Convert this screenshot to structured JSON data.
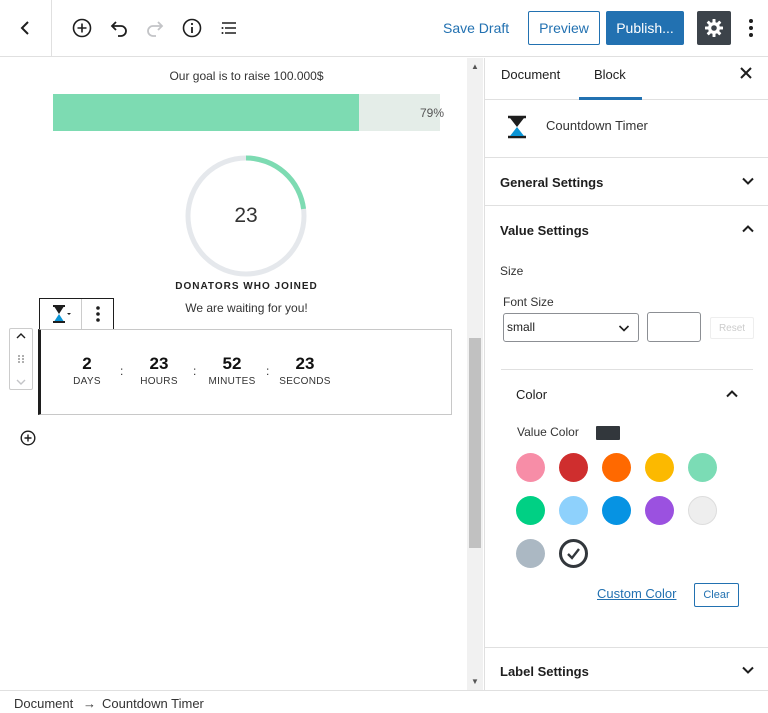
{
  "toolbar": {
    "save_draft": "Save Draft",
    "preview": "Preview",
    "publish": "Publish..."
  },
  "canvas": {
    "goal_text": "Our goal is to raise 100.000$",
    "progress_percent": 79,
    "progress_label": "79%",
    "circle_value": "23",
    "circle_fraction": 0.23,
    "donators_label": "DONATORS WHO JOINED",
    "waiting_text": "We are waiting for you!",
    "timer": [
      {
        "value": "2",
        "label": "DAYS"
      },
      {
        "value": "23",
        "label": "HOURS"
      },
      {
        "value": "52",
        "label": "MINUTES"
      },
      {
        "value": "23",
        "label": "SECONDS"
      }
    ],
    "separator": ":"
  },
  "sidebar": {
    "tabs": [
      "Document",
      "Block"
    ],
    "active_tab": "Block",
    "block_name": "Countdown Timer",
    "general_settings": "General Settings",
    "value_settings": "Value Settings",
    "size_label": "Size",
    "font_size_label": "Font Size",
    "font_size_value": "small",
    "reset": "Reset",
    "color_title": "Color",
    "value_color_label": "Value Color",
    "value_color": "#32373c",
    "palette": [
      "#f78da7",
      "#cf2e2e",
      "#ff6900",
      "#fcb900",
      "#7bdcb5",
      "#00d084",
      "#8ed1fc",
      "#0693e3",
      "#9b51e0",
      "#eeeeee",
      "#abb8c3",
      "#32373c"
    ],
    "selected_color": "#32373c",
    "custom_color": "Custom Color",
    "clear": "Clear",
    "label_settings": "Label Settings"
  },
  "breadcrumb": {
    "items": [
      "Document",
      "Countdown Timer"
    ],
    "arrow": "→"
  },
  "colors": {
    "accent": "#2271b1",
    "progress_fill": "#7ddbb2",
    "progress_track": "#e4ede8"
  }
}
